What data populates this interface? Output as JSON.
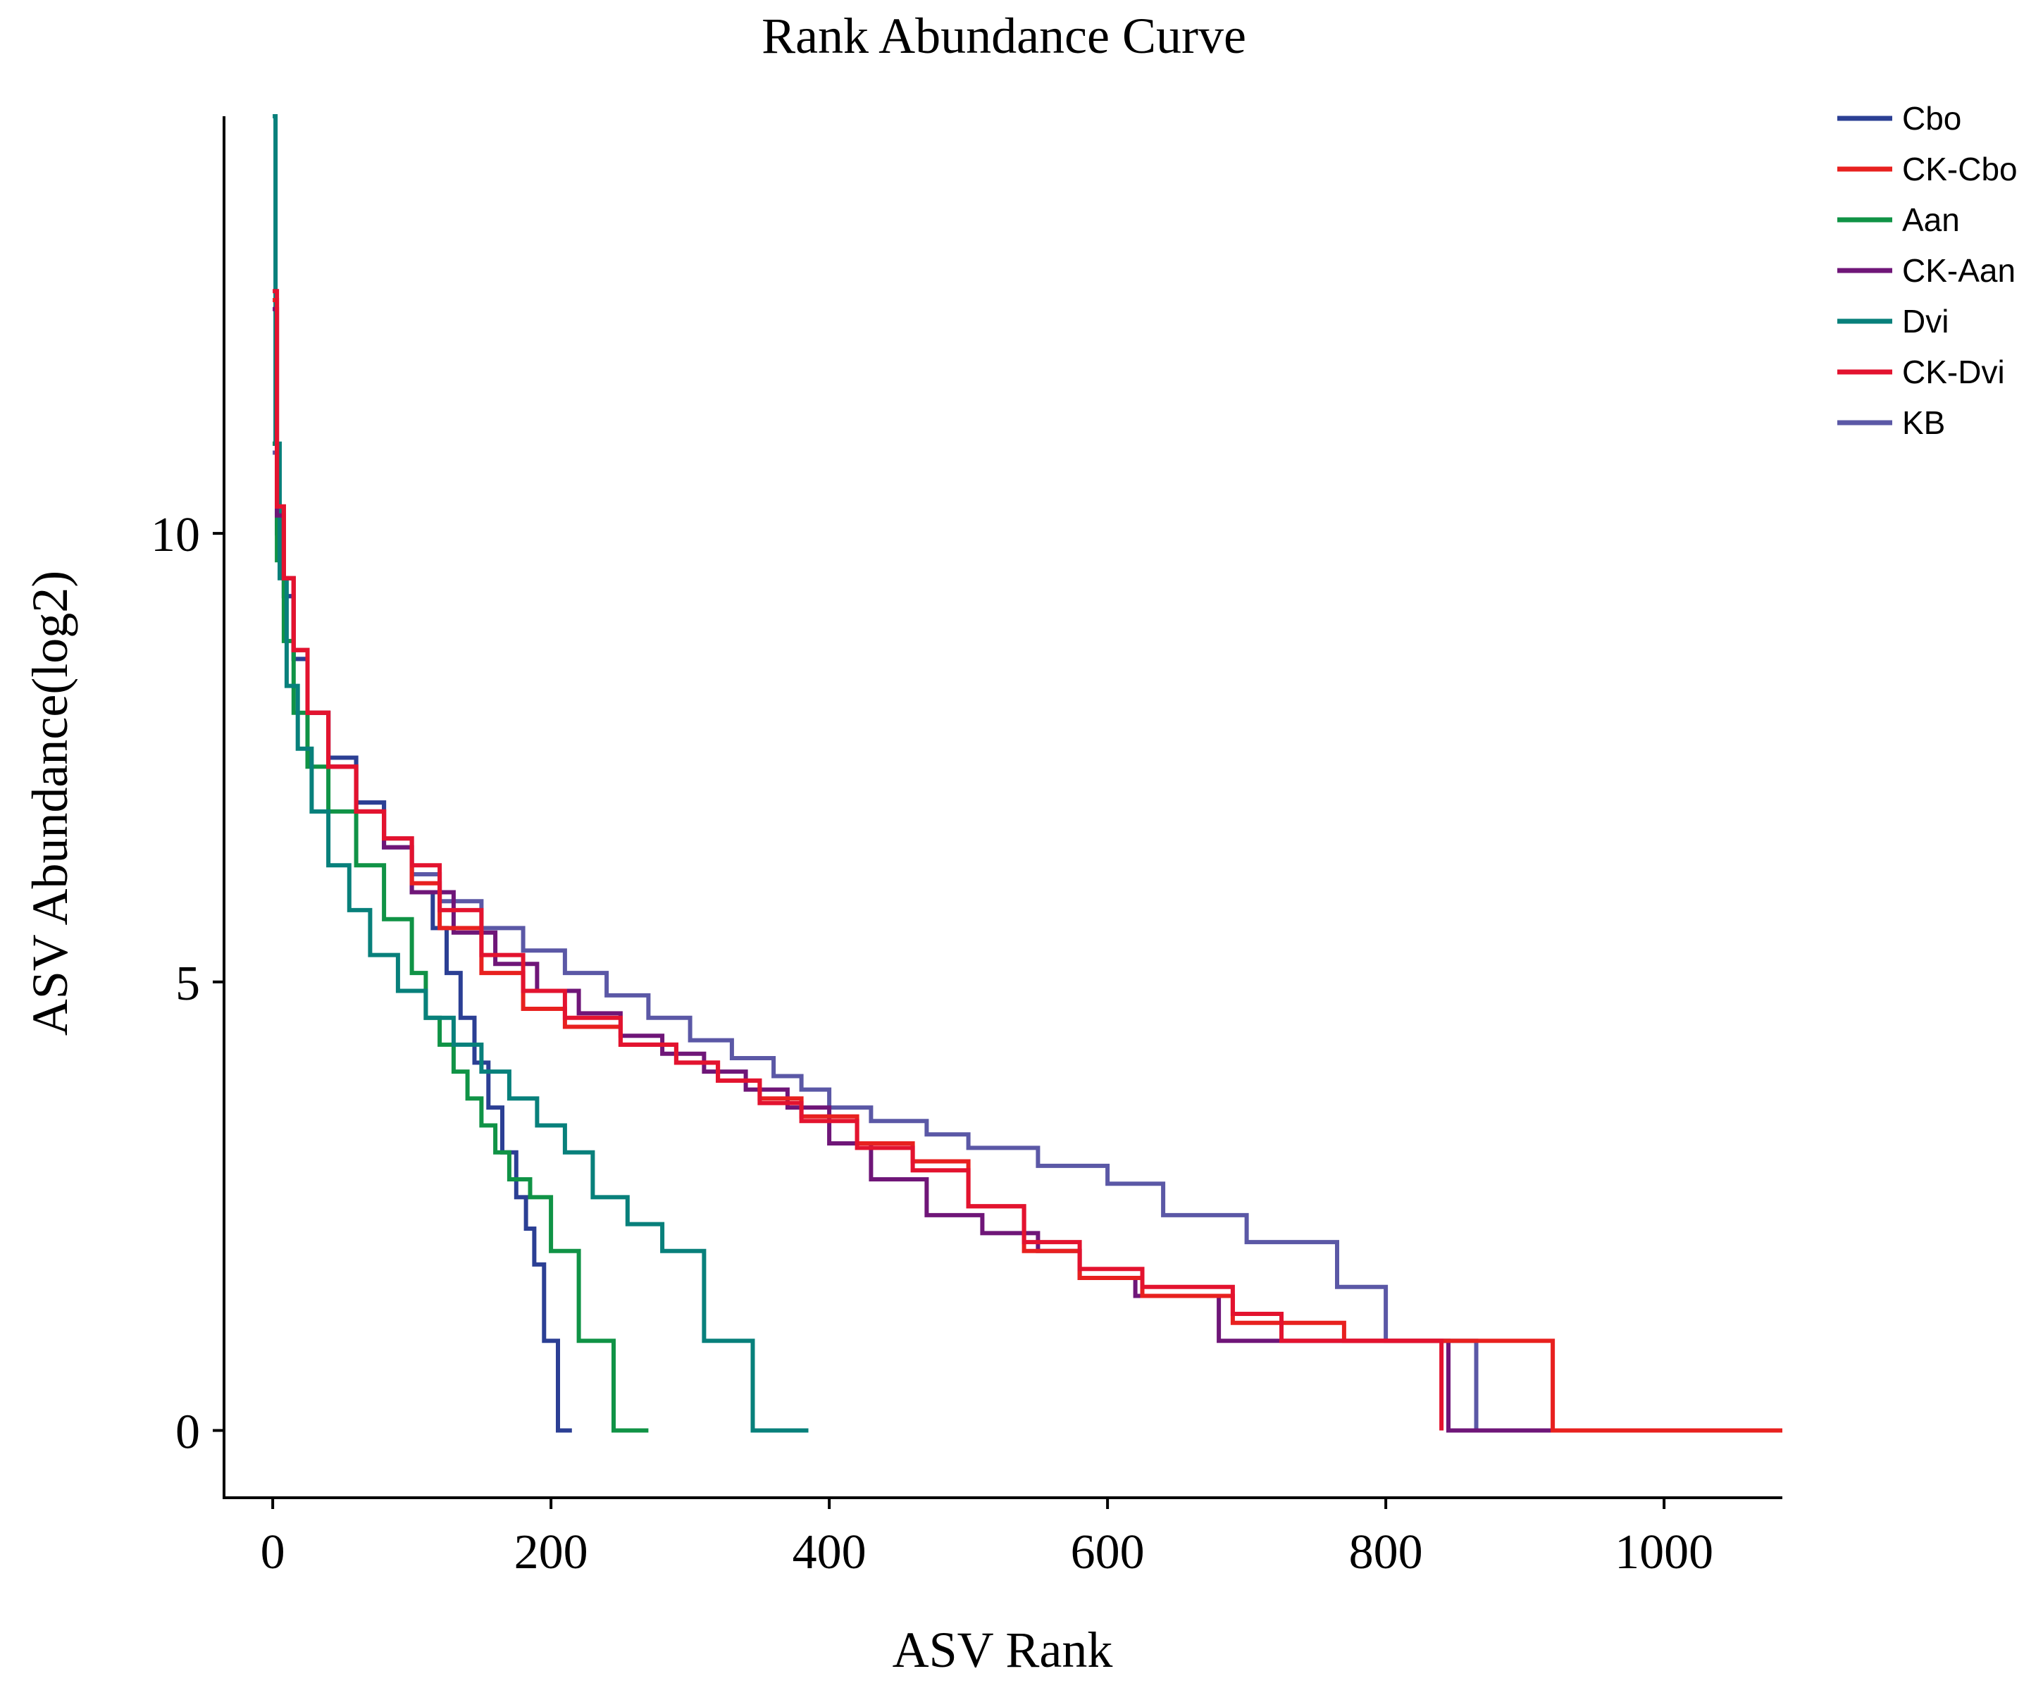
{
  "chart_data": {
    "type": "line",
    "title": "Rank Abundance Curve",
    "xlabel": "ASV Rank",
    "ylabel": "ASV Abundance(log2)",
    "xlim": [
      -35,
      1085
    ],
    "ylim": [
      -0.75,
      14.65
    ],
    "xticks": [
      0,
      200,
      400,
      600,
      800,
      1000
    ],
    "xtick_labels": [
      "0",
      "200",
      "400",
      "600",
      "800",
      "1000"
    ],
    "yticks": [
      0,
      5,
      10
    ],
    "ytick_labels": [
      "0",
      "5",
      "10"
    ],
    "grid": false,
    "legend_position": "top-right",
    "series": [
      {
        "name": "KB",
        "color": "#5b58a6",
        "x": [
          0,
          3,
          8,
          15,
          25,
          40,
          60,
          80,
          100,
          120,
          150,
          180,
          210,
          240,
          270,
          300,
          330,
          360,
          380,
          400,
          430,
          470,
          500,
          550,
          600,
          640,
          700,
          765,
          800,
          865,
          960
        ],
        "y": [
          10.9,
          10.1,
          9.3,
          8.6,
          8.0,
          7.5,
          7.0,
          6.6,
          6.2,
          5.9,
          5.6,
          5.35,
          5.1,
          4.85,
          4.6,
          4.35,
          4.15,
          3.95,
          3.8,
          3.6,
          3.45,
          3.3,
          3.15,
          2.95,
          2.75,
          2.4,
          2.1,
          1.6,
          1.0,
          0,
          0
        ]
      },
      {
        "name": "Cbo",
        "color": "#2b3f94",
        "x": [
          0,
          3,
          8,
          15,
          25,
          40,
          60,
          80,
          100,
          115,
          125,
          135,
          145,
          155,
          165,
          175,
          182,
          188,
          195,
          205,
          215
        ],
        "y": [
          11.0,
          10.0,
          9.3,
          8.6,
          8.0,
          7.5,
          7.0,
          6.5,
          6.0,
          5.6,
          5.1,
          4.6,
          4.1,
          3.6,
          3.1,
          2.6,
          2.25,
          1.85,
          1.0,
          0,
          0
        ]
      },
      {
        "name": "Aan",
        "color": "#109346",
        "x": [
          0,
          3,
          8,
          15,
          25,
          40,
          60,
          80,
          100,
          110,
          120,
          130,
          140,
          150,
          160,
          170,
          185,
          200,
          220,
          245,
          270
        ],
        "y": [
          11.0,
          9.7,
          8.8,
          8.0,
          7.4,
          6.9,
          6.3,
          5.7,
          5.1,
          4.6,
          4.3,
          4.0,
          3.7,
          3.4,
          3.1,
          2.8,
          2.6,
          2.0,
          1.0,
          0,
          0
        ]
      },
      {
        "name": "Dvi",
        "color": "#08807b",
        "x": [
          0,
          2,
          5,
          10,
          18,
          28,
          40,
          55,
          70,
          90,
          110,
          130,
          150,
          170,
          190,
          210,
          230,
          255,
          280,
          310,
          345,
          385
        ],
        "y": [
          14.65,
          11.0,
          9.5,
          8.3,
          7.6,
          6.9,
          6.3,
          5.8,
          5.3,
          4.9,
          4.6,
          4.3,
          4.0,
          3.7,
          3.4,
          3.1,
          2.6,
          2.3,
          2.0,
          1.0,
          0,
          0
        ]
      },
      {
        "name": "CK-Aan",
        "color": "#6f1678",
        "x": [
          0,
          3,
          8,
          15,
          25,
          40,
          60,
          80,
          100,
          130,
          160,
          190,
          220,
          250,
          280,
          310,
          340,
          370,
          400,
          430,
          470,
          510,
          550,
          580,
          620,
          680,
          750,
          845,
          960,
          1030
        ],
        "y": [
          12.5,
          10.2,
          9.5,
          8.7,
          8.0,
          7.4,
          6.9,
          6.5,
          6.0,
          5.55,
          5.2,
          4.9,
          4.65,
          4.4,
          4.2,
          4.0,
          3.8,
          3.6,
          3.2,
          2.8,
          2.4,
          2.2,
          2.0,
          1.7,
          1.5,
          1.0,
          1.0,
          0,
          0,
          0
        ]
      },
      {
        "name": "CK-Cbo",
        "color": "#e8211f",
        "x": [
          0,
          3,
          8,
          15,
          25,
          40,
          60,
          80,
          100,
          120,
          150,
          180,
          210,
          250,
          290,
          320,
          350,
          380,
          420,
          460,
          500,
          540,
          580,
          625,
          690,
          770,
          840,
          920,
          1030,
          1085
        ],
        "y": [
          12.6,
          10.3,
          9.5,
          8.7,
          8.0,
          7.4,
          6.9,
          6.6,
          6.1,
          5.6,
          5.1,
          4.7,
          4.5,
          4.3,
          4.1,
          3.9,
          3.7,
          3.5,
          3.2,
          3.0,
          2.5,
          2.0,
          1.7,
          1.5,
          1.2,
          1.0,
          1.0,
          0,
          0,
          0
        ]
      },
      {
        "name": "CK-Dvi",
        "color": "#e3132f",
        "x": [
          0,
          3,
          8,
          15,
          25,
          40,
          60,
          80,
          100,
          120,
          150,
          180,
          210,
          250,
          290,
          320,
          350,
          380,
          420,
          460,
          500,
          540,
          580,
          625,
          690,
          725,
          800,
          840
        ],
        "y": [
          12.7,
          10.3,
          9.5,
          8.7,
          8.0,
          7.4,
          6.9,
          6.6,
          6.3,
          5.8,
          5.3,
          4.9,
          4.6,
          4.3,
          4.1,
          3.9,
          3.65,
          3.45,
          3.15,
          2.9,
          2.5,
          2.1,
          1.8,
          1.6,
          1.3,
          1.0,
          1.0,
          0
        ]
      }
    ]
  }
}
